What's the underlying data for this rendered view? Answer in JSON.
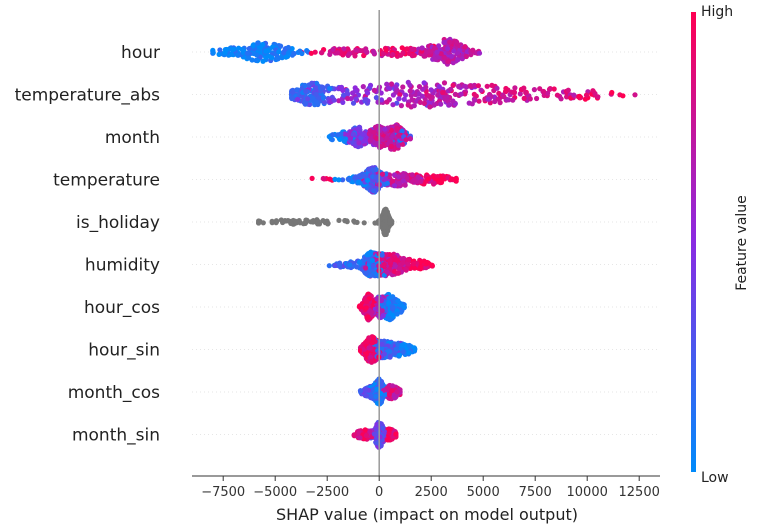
{
  "chart_data": {
    "type": "scatter",
    "subtype": "shap-beeswarm",
    "xlabel": "SHAP value (impact on model output)",
    "xlim": [
      -9000,
      13500
    ],
    "x_ticks": [
      -7500,
      -5000,
      -2500,
      0,
      2500,
      5000,
      7500,
      10000,
      12500
    ],
    "x_tick_labels": [
      "−7500",
      "−5000",
      "−2500",
      "0",
      "2500",
      "5000",
      "7500",
      "10000",
      "12500"
    ],
    "colorbar": {
      "label": "Feature value",
      "high_label": "High",
      "low_label": "Low",
      "low_color": "#008bfb",
      "mid_color": "#8a2be2",
      "high_color": "#ff0052"
    },
    "neutral_color": "#777777",
    "features": [
      {
        "name": "hour",
        "range": [
          -8000,
          5000
        ],
        "clusters": [
          {
            "center": -5500,
            "spread": 900,
            "weight": 1.6,
            "color": 0.05
          },
          {
            "center": -7200,
            "spread": 500,
            "weight": 0.3,
            "color": 0.05
          },
          {
            "center": -1500,
            "spread": 900,
            "weight": 0.6,
            "color": 0.85
          },
          {
            "center": 1000,
            "spread": 900,
            "weight": 0.6,
            "color": 0.9
          },
          {
            "center": 3300,
            "spread": 600,
            "weight": 2.2,
            "color": 0.7
          }
        ]
      },
      {
        "name": "temperature_abs",
        "range": [
          -4200,
          12300
        ],
        "clusters": [
          {
            "center": -3300,
            "spread": 600,
            "weight": 1.6,
            "color": 0.2
          },
          {
            "center": -1200,
            "spread": 1200,
            "weight": 1.0,
            "color": 0.45
          },
          {
            "center": 1800,
            "spread": 1800,
            "weight": 1.6,
            "color": 0.65
          },
          {
            "center": 5500,
            "spread": 2500,
            "weight": 1.2,
            "color": 0.8
          },
          {
            "center": 10000,
            "spread": 1600,
            "weight": 0.4,
            "color": 0.95
          }
        ]
      },
      {
        "name": "month",
        "range": [
          -2400,
          1500
        ],
        "clusters": [
          {
            "center": -1800,
            "spread": 350,
            "weight": 0.4,
            "color": 0.05
          },
          {
            "center": -1000,
            "spread": 300,
            "weight": 0.9,
            "color": 0.45
          },
          {
            "center": -100,
            "spread": 250,
            "weight": 1.0,
            "color": 0.7
          },
          {
            "center": 700,
            "spread": 300,
            "weight": 1.2,
            "color": 0.75
          },
          {
            "center": 1200,
            "spread": 200,
            "weight": 0.3,
            "color": 0.15
          }
        ]
      },
      {
        "name": "temperature",
        "range": [
          -3300,
          3700
        ],
        "clusters": [
          {
            "center": -2800,
            "spread": 300,
            "weight": 0.1,
            "color": 0.95
          },
          {
            "center": -800,
            "spread": 500,
            "weight": 0.6,
            "color": 0.1
          },
          {
            "center": -300,
            "spread": 250,
            "weight": 1.8,
            "color": 0.25
          },
          {
            "center": 800,
            "spread": 700,
            "weight": 1.1,
            "color": 0.7
          },
          {
            "center": 2600,
            "spread": 700,
            "weight": 0.7,
            "color": 0.95
          }
        ]
      },
      {
        "name": "is_holiday",
        "range": [
          -5800,
          600
        ],
        "neutral": true,
        "clusters": [
          {
            "center": -3700,
            "spread": 1300,
            "weight": 0.25,
            "color": -1
          },
          {
            "center": 300,
            "spread": 120,
            "weight": 1.8,
            "color": -1
          }
        ]
      },
      {
        "name": "humidity",
        "range": [
          -2400,
          2700
        ],
        "clusters": [
          {
            "center": -1500,
            "spread": 500,
            "weight": 0.3,
            "color": 0.2
          },
          {
            "center": -400,
            "spread": 300,
            "weight": 1.4,
            "color": 0.15
          },
          {
            "center": 500,
            "spread": 500,
            "weight": 1.5,
            "color": 0.8
          },
          {
            "center": 1800,
            "spread": 500,
            "weight": 0.5,
            "color": 0.95
          }
        ]
      },
      {
        "name": "hour_cos",
        "range": [
          -1000,
          1200
        ],
        "clusters": [
          {
            "center": -500,
            "spread": 180,
            "weight": 1.1,
            "color": 0.9
          },
          {
            "center": 0,
            "spread": 150,
            "weight": 0.7,
            "color": 0.6
          },
          {
            "center": 500,
            "spread": 250,
            "weight": 1.1,
            "color": 0.1
          },
          {
            "center": 1000,
            "spread": 150,
            "weight": 0.3,
            "color": 0.05
          }
        ]
      },
      {
        "name": "hour_sin",
        "range": [
          -900,
          1700
        ],
        "clusters": [
          {
            "center": -400,
            "spread": 250,
            "weight": 1.3,
            "color": 0.9
          },
          {
            "center": 300,
            "spread": 300,
            "weight": 0.8,
            "color": 0.25
          },
          {
            "center": 1100,
            "spread": 350,
            "weight": 0.6,
            "color": 0.05
          }
        ]
      },
      {
        "name": "month_cos",
        "range": [
          -900,
          1000
        ],
        "clusters": [
          {
            "center": -400,
            "spread": 250,
            "weight": 0.6,
            "color": 0.3
          },
          {
            "center": 0,
            "spread": 150,
            "weight": 1.4,
            "color": 0.1
          },
          {
            "center": 600,
            "spread": 250,
            "weight": 0.8,
            "color": 0.8
          }
        ]
      },
      {
        "name": "month_sin",
        "range": [
          -1200,
          800
        ],
        "clusters": [
          {
            "center": -700,
            "spread": 300,
            "weight": 0.5,
            "color": 0.85
          },
          {
            "center": 0,
            "spread": 150,
            "weight": 1.5,
            "color": 0.4
          },
          {
            "center": 500,
            "spread": 200,
            "weight": 0.6,
            "color": 0.9
          }
        ]
      }
    ]
  }
}
